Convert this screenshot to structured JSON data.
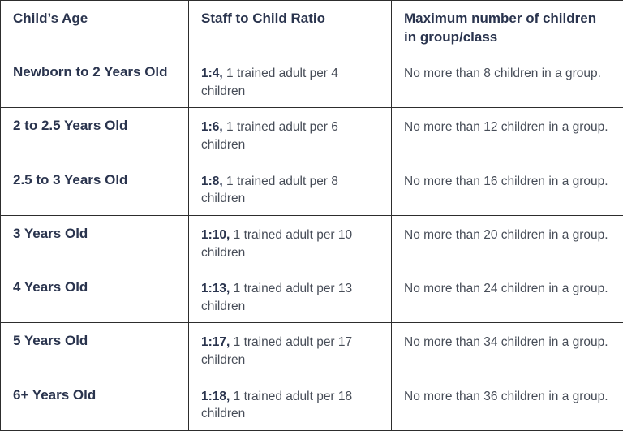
{
  "colors": {
    "background": "#ffffff",
    "border": "#2d2d2d",
    "heading_text": "#2a344e",
    "body_text": "#474d58"
  },
  "table": {
    "columns": [
      {
        "label": "Child’s Age"
      },
      {
        "label": "Staff to Child Ratio"
      },
      {
        "label": "Maximum number of children in group/class"
      }
    ],
    "rows": [
      {
        "age": "Newborn to 2 Years Old",
        "ratio": "1:4,",
        "ratio_description": " 1 trained adult per 4 children",
        "max_children": "No more than 8 children in a group."
      },
      {
        "age": "2 to 2.5 Years Old",
        "ratio": "1:6,",
        "ratio_description": " 1 trained adult per 6 children",
        "max_children": "No more than 12 children in a group."
      },
      {
        "age": "2.5 to 3 Years Old",
        "ratio": "1:8,",
        "ratio_description": " 1 trained adult per 8 children",
        "max_children": "No more than 16 children in a group."
      },
      {
        "age": "3 Years Old",
        "ratio": "1:10,",
        "ratio_description": " 1 trained adult per 10 children",
        "max_children": "No more than 20 children in a group."
      },
      {
        "age": "4 Years Old",
        "ratio": "1:13,",
        "ratio_description": " 1 trained adult per 13 children",
        "max_children": "No more than 24 children in a group."
      },
      {
        "age": "5 Years Old",
        "ratio": "1:17,",
        "ratio_description": " 1 trained adult per 17 children",
        "max_children": "No more than 34 children in a group."
      },
      {
        "age": "6+ Years Old",
        "ratio": "1:18,",
        "ratio_description": " 1 trained adult per 18 children",
        "max_children": "No more than 36 children in a group."
      }
    ]
  }
}
